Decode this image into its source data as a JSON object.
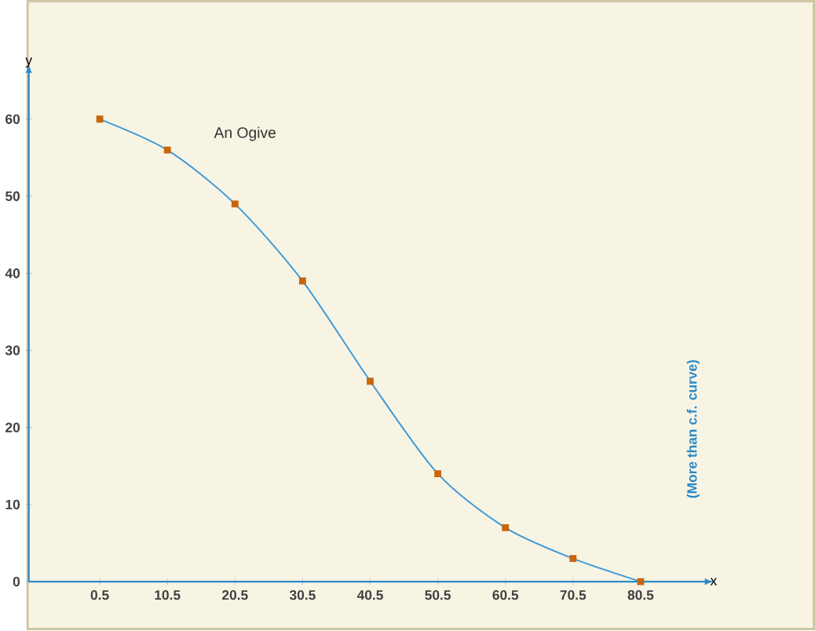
{
  "chart_data": {
    "type": "line",
    "xlabel": "x",
    "ylabel": "y",
    "annotations": [
      "An Ogive",
      "(More than c.f. curve)"
    ],
    "x": [
      0.5,
      10.5,
      20.5,
      30.5,
      40.5,
      50.5,
      60.5,
      70.5,
      80.5
    ],
    "series": [
      {
        "color": "#3c9ad8",
        "values": [
          60,
          56,
          49,
          39,
          26,
          14,
          7,
          3,
          0
        ]
      }
    ],
    "marker": "square",
    "line_style": "solid",
    "xlim": [
      -10,
      90
    ],
    "ylim": [
      0,
      66
    ],
    "xticks": [
      0.5,
      10.5,
      20.5,
      30.5,
      40.5,
      50.5,
      60.5,
      70.5,
      80.5
    ],
    "yticks": [
      0,
      10,
      20,
      30,
      40,
      50,
      60
    ]
  }
}
